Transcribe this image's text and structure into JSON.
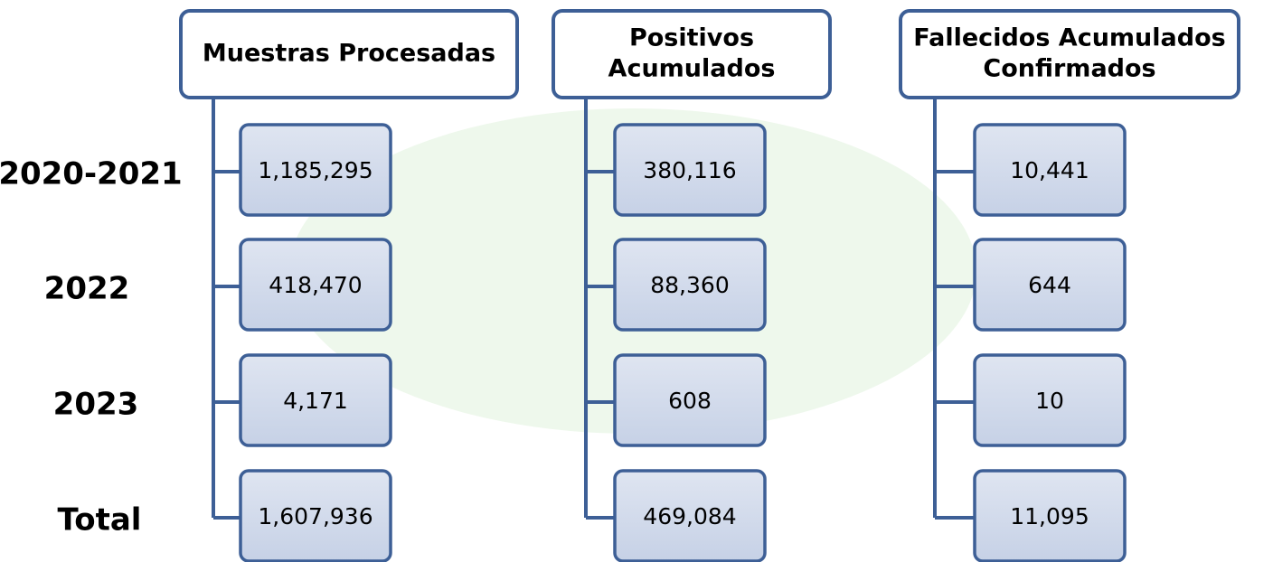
{
  "row_labels": [
    "2020-2021",
    "2022",
    "2023",
    "Total"
  ],
  "columns": [
    {
      "header": [
        "Muestras Procesadas"
      ],
      "values": [
        "1,185,295",
        "418,470",
        "4,171",
        "1,607,936"
      ]
    },
    {
      "header": [
        "Positivos",
        "Acumulados"
      ],
      "values": [
        "380,116",
        "88,360",
        "608",
        "469,084"
      ]
    },
    {
      "header": [
        "Fallecidos Acumulados",
        "Confirmados"
      ],
      "values": [
        "10,441",
        "644",
        "10",
        "11,095"
      ]
    }
  ]
}
